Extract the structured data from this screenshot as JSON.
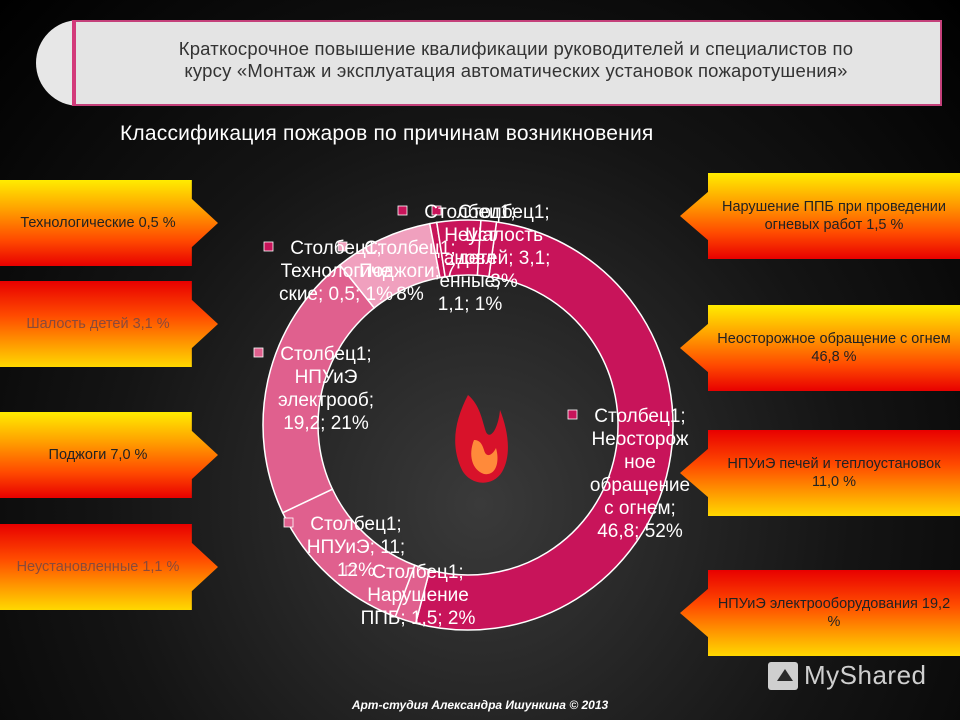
{
  "header": {
    "line1": "Краткосрочное повышение квалификации руководителей и специалистов по",
    "line2": "курсу «Монтаж и эксплуатация автоматических установок пожаротушения»"
  },
  "subtitle": "Классификация пожаров по причинам возникновения",
  "left_tags": [
    {
      "text": "Технологические 0,5 %"
    },
    {
      "text": "Шалость детей 3,1 %"
    },
    {
      "text": "Поджоги 7,0 %"
    },
    {
      "text": "Неустановленные 1,1 %"
    }
  ],
  "right_tags": [
    {
      "text": "Нарушение ППБ при проведении огневых работ 1,5 %"
    },
    {
      "text": "Неосторожное обращение с огнем 46,8 %"
    },
    {
      "text": "НПУиЭ печей и теплоустановок 11,0 %"
    },
    {
      "text": "НПУиЭ электрооборудования 19,2 %"
    }
  ],
  "chart_data": {
    "type": "pie",
    "variant": "doughnut",
    "series_name": "Столбец1",
    "slices": [
      {
        "category": "Неосторожное обращение с огнем",
        "value": 46.8,
        "percent": 52,
        "label_lines": [
          "Столбец1;",
          "Неосторож",
          "ное",
          "обращение",
          "с огнем;",
          "46,8; 52%"
        ]
      },
      {
        "category": "Нарушение ППБ",
        "value": 1.5,
        "percent": 2,
        "label_lines": [
          "Столбец1;",
          "Нарушение",
          "ППБ; 1,5; 2%"
        ]
      },
      {
        "category": "НПУиЭ",
        "value": 11,
        "percent": 12,
        "label_lines": [
          "Столбец1;",
          "НПУиЭ; 11;",
          "12%"
        ]
      },
      {
        "category": "НПУиЭ электрооб",
        "value": 19.2,
        "percent": 21,
        "label_lines": [
          "Столбец1;",
          "НПУиЭ",
          "электрооб;",
          "19,2; 21%"
        ]
      },
      {
        "category": "Поджоги",
        "value": 7,
        "percent": 8,
        "label_lines": [
          "Столбец1;",
          "Поджоги; 7;",
          "8%"
        ]
      },
      {
        "category": "Технологические",
        "value": 0.5,
        "percent": 1,
        "label_lines": [
          "Столбец1;",
          "Технологиче",
          "ские; 0,5; 1%"
        ]
      },
      {
        "category": "Шалость детей",
        "value": 3.1,
        "percent": 3,
        "label_lines": [
          "Столбец1;",
          "Шалость",
          "детей; 3,1;",
          "3%"
        ]
      },
      {
        "category": "Неустановленные",
        "value": 1.1,
        "percent": 1,
        "label_lines": [
          "Столбец1;",
          "Неуст",
          "ановл",
          "енные;",
          "1,1; 1%"
        ]
      }
    ]
  },
  "footer": "Арт-студия Александра Ишункина © 2013",
  "brand": "MyShared",
  "colors": {
    "slice_main": "#c8145a",
    "slice_light": "#e0608e",
    "slice_pale": "#f0a0be",
    "header_border": "#c4407a"
  }
}
